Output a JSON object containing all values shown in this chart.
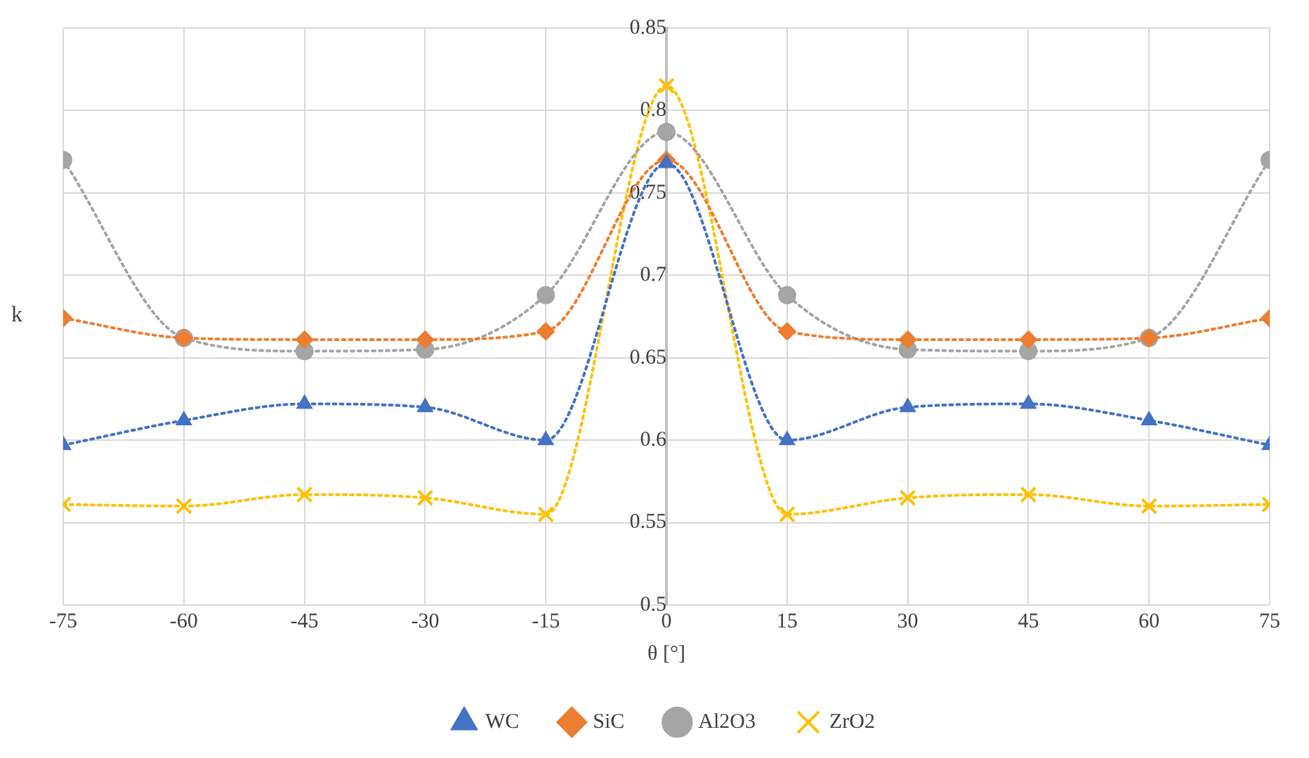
{
  "chart_data": {
    "type": "line",
    "xlabel": "θ [°]",
    "ylabel": "k",
    "x": [
      -75,
      -60,
      -45,
      -30,
      -15,
      0,
      15,
      30,
      45,
      60,
      75
    ],
    "series": [
      {
        "name": "WC",
        "color": "#4472c4",
        "marker": "triangle",
        "values": [
          0.597,
          0.612,
          0.622,
          0.62,
          0.6,
          0.768,
          0.6,
          0.62,
          0.622,
          0.612,
          0.597
        ]
      },
      {
        "name": "SiC",
        "color": "#ed7d31",
        "marker": "diamond",
        "values": [
          0.674,
          0.662,
          0.661,
          0.661,
          0.666,
          0.77,
          0.666,
          0.661,
          0.661,
          0.662,
          0.674
        ]
      },
      {
        "name": "Al2O3",
        "color": "#a5a5a5",
        "marker": "circle",
        "values": [
          0.77,
          0.662,
          0.654,
          0.655,
          0.688,
          0.787,
          0.688,
          0.655,
          0.654,
          0.662,
          0.77
        ]
      },
      {
        "name": "ZrO2",
        "color": "#ffc000",
        "marker": "cross",
        "values": [
          0.561,
          0.56,
          0.567,
          0.565,
          0.555,
          0.815,
          0.555,
          0.565,
          0.567,
          0.56,
          0.561
        ]
      }
    ],
    "xlim": [
      -75,
      75
    ],
    "xticks": [
      -75,
      -60,
      -45,
      -30,
      -15,
      0,
      15,
      30,
      45,
      60,
      75
    ],
    "ylim": [
      0.5,
      0.85
    ],
    "yticks": [
      0.5,
      0.55,
      0.6,
      0.65,
      0.7,
      0.75,
      0.8,
      0.85
    ],
    "grid": true,
    "legend": "bottom",
    "line_style": "dotted"
  }
}
